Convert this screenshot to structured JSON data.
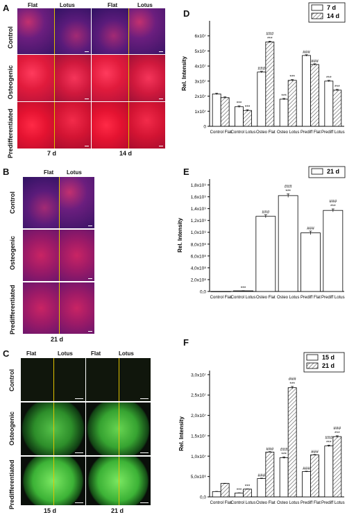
{
  "panels": {
    "A": {
      "label": "A",
      "columns": [
        "Flat",
        "Lotus",
        "Flat",
        "Lotus"
      ],
      "rows": [
        "Control",
        "Osteogenic",
        "Predifferentiated"
      ],
      "days": [
        "7 d",
        "14 d"
      ]
    },
    "B": {
      "label": "B",
      "columns": [
        "Flat",
        "Lotus"
      ],
      "rows": [
        "Control",
        "Osteogenic",
        "Predifferentiated"
      ],
      "days": [
        "21 d"
      ]
    },
    "C": {
      "label": "C",
      "columns": [
        "Flat",
        "Lotus",
        "Flat",
        "Lotus"
      ],
      "rows": [
        "Control",
        "Osteogenic",
        "Predifferentiated"
      ],
      "days": [
        "15 d",
        "21 d"
      ]
    },
    "D": {
      "label": "D"
    },
    "E": {
      "label": "E"
    },
    "F": {
      "label": "F"
    }
  },
  "colors": {
    "open_bar": "#ffffff",
    "hatched_bar": "#cfcfcf",
    "axis": "#000000",
    "divider": "#e0c200"
  },
  "chart_data": [
    {
      "id": "D",
      "type": "bar",
      "ylabel": "Rel. Intensity",
      "categories": [
        "Control Flat",
        "Control Lotus",
        "Osteo Flat",
        "Osteo Lotus",
        "Prediff Flat",
        "Prediff Lotus"
      ],
      "series": [
        {
          "name": "7 d",
          "pattern": "open",
          "values": [
            21500000.0,
            13000000.0,
            36000000.0,
            18000000.0,
            47000000.0,
            30000000.0
          ],
          "errors": [
            500000.0,
            500000.0,
            500000.0,
            500000.0,
            500000.0,
            500000.0
          ]
        },
        {
          "name": "14 d",
          "pattern": "hatched",
          "values": [
            19000000.0,
            10500000.0,
            56000000.0,
            30500000.0,
            41000000.0,
            24000000.0
          ],
          "errors": [
            500000.0,
            500000.0,
            500000.0,
            500000.0,
            500000.0,
            500000.0
          ]
        }
      ],
      "ylim": [
        0,
        70000000.0
      ],
      "yticks": [
        {
          "v": 0,
          "t": "0"
        },
        {
          "v": 10000000.0,
          "t": "1x10⁷"
        },
        {
          "v": 20000000.0,
          "t": "2x10⁷"
        },
        {
          "v": 30000000.0,
          "t": "3x10⁷"
        },
        {
          "v": 40000000.0,
          "t": "4x10⁷"
        },
        {
          "v": 50000000.0,
          "t": "5x10⁷"
        },
        {
          "v": 60000000.0,
          "t": "6x10⁷"
        }
      ],
      "annotations": [
        {
          "cat": 1,
          "s": 0,
          "lines": [
            "***"
          ]
        },
        {
          "cat": 1,
          "s": 1,
          "lines": [
            "***"
          ]
        },
        {
          "cat": 2,
          "s": 0,
          "lines": [
            "###"
          ]
        },
        {
          "cat": 2,
          "s": 1,
          "lines": [
            "###",
            "***"
          ]
        },
        {
          "cat": 3,
          "s": 0,
          "lines": [
            "***"
          ]
        },
        {
          "cat": 3,
          "s": 1,
          "lines": [
            "***"
          ]
        },
        {
          "cat": 4,
          "s": 0,
          "lines": [
            "###"
          ]
        },
        {
          "cat": 4,
          "s": 1,
          "lines": [
            "###"
          ]
        },
        {
          "cat": 5,
          "s": 0,
          "lines": [
            "***"
          ]
        },
        {
          "cat": 5,
          "s": 1,
          "lines": [
            "***"
          ]
        }
      ]
    },
    {
      "id": "E",
      "type": "bar",
      "ylabel": "Rel. Intensity",
      "categories": [
        "Control Flat",
        "Control Lotus",
        "Osteo Flat",
        "Osteo Lotus",
        "Prediff Flat",
        "Prediff Lotus"
      ],
      "series": [
        {
          "name": "21 d",
          "pattern": "open",
          "values": [
            1000000.0,
            11000000.0,
            1270000000.0,
            1620000000.0,
            990000000.0,
            1370000000.0
          ],
          "errors": [
            0,
            2000000.0,
            25000000.0,
            30000000.0,
            30000000.0,
            25000000.0
          ]
        }
      ],
      "ylim": [
        0,
        1900000000.0
      ],
      "yticks": [
        {
          "v": 0,
          "t": "0,0"
        },
        {
          "v": 200000000.0,
          "t": "2,0x10⁸"
        },
        {
          "v": 400000000.0,
          "t": "4,0x10⁸"
        },
        {
          "v": 600000000.0,
          "t": "6,0x10⁸"
        },
        {
          "v": 800000000.0,
          "t": "8,0x10⁸"
        },
        {
          "v": 1000000000.0,
          "t": "1,0x10⁹"
        },
        {
          "v": 1200000000.0,
          "t": "1,2x10⁹"
        },
        {
          "v": 1400000000.0,
          "t": "1,4x10⁹"
        },
        {
          "v": 1600000000.0,
          "t": "1,6x10⁹"
        },
        {
          "v": 1800000000.0,
          "t": "1,8x10⁹"
        }
      ],
      "annotations": [
        {
          "cat": 1,
          "s": 0,
          "lines": [
            "***"
          ]
        },
        {
          "cat": 2,
          "s": 0,
          "lines": [
            "###"
          ]
        },
        {
          "cat": 3,
          "s": 0,
          "lines": [
            "###",
            "***"
          ]
        },
        {
          "cat": 4,
          "s": 0,
          "lines": [
            "###"
          ]
        },
        {
          "cat": 5,
          "s": 0,
          "lines": [
            "###",
            "***"
          ]
        }
      ]
    },
    {
      "id": "F",
      "type": "bar",
      "ylabel": "Rel. Intensity",
      "categories": [
        "Control Flat",
        "Control Lotus",
        "Osteo Flat",
        "Osteo Lotus",
        "Prediff Flat",
        "Prediff Lotus"
      ],
      "series": [
        {
          "name": "15 d",
          "pattern": "open",
          "values": [
            1300000.0,
            950000.0,
            4500000.0,
            9600000.0,
            6200000.0,
            12500000.0
          ],
          "errors": [
            50000.0,
            50000.0,
            100000.0,
            200000.0,
            100000.0,
            200000.0
          ]
        },
        {
          "name": "21 d",
          "pattern": "hatched",
          "values": [
            3300000.0,
            1900000.0,
            11000000.0,
            26800000.0,
            10300000.0,
            14800000.0
          ],
          "errors": [
            50000.0,
            50000.0,
            100000.0,
            300000.0,
            100000.0,
            200000.0
          ]
        }
      ],
      "ylim": [
        0,
        31000000.0
      ],
      "yticks": [
        {
          "v": 0,
          "t": "0,0"
        },
        {
          "v": 5000000.0,
          "t": "5,0x10⁶"
        },
        {
          "v": 10000000.0,
          "t": "1,0x10⁷"
        },
        {
          "v": 15000000.0,
          "t": "1,5x10⁷"
        },
        {
          "v": 20000000.0,
          "t": "2,0x10⁷"
        },
        {
          "v": 25000000.0,
          "t": "2,5x10⁷"
        },
        {
          "v": 30000000.0,
          "t": "3,0x10⁷"
        }
      ],
      "annotations": [
        {
          "cat": 1,
          "s": 0,
          "lines": [
            "***"
          ]
        },
        {
          "cat": 1,
          "s": 1,
          "lines": [
            "***"
          ]
        },
        {
          "cat": 2,
          "s": 0,
          "lines": [
            "###"
          ]
        },
        {
          "cat": 2,
          "s": 1,
          "lines": [
            "###"
          ]
        },
        {
          "cat": 3,
          "s": 0,
          "lines": [
            "###",
            "***"
          ]
        },
        {
          "cat": 3,
          "s": 1,
          "lines": [
            "###",
            "***"
          ]
        },
        {
          "cat": 4,
          "s": 0,
          "lines": [
            "###"
          ]
        },
        {
          "cat": 4,
          "s": 1,
          "lines": [
            "###"
          ]
        },
        {
          "cat": 5,
          "s": 0,
          "lines": [
            "###",
            "***"
          ]
        },
        {
          "cat": 5,
          "s": 1,
          "lines": [
            "###",
            "***"
          ]
        }
      ]
    }
  ]
}
